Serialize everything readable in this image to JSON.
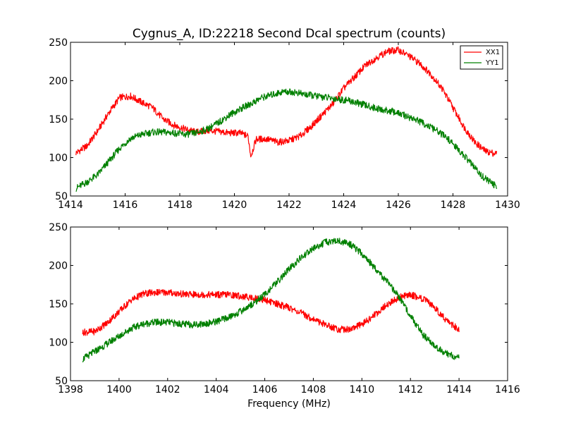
{
  "chart_data": [
    {
      "type": "line",
      "title": "Cygnus_A, ID:22218 Second Dcal spectrum (counts)",
      "xlabel": "",
      "ylabel": "",
      "xlim": [
        1414,
        1430
      ],
      "ylim": [
        50,
        250
      ],
      "xticks": [
        "1414",
        "1416",
        "1418",
        "1420",
        "1422",
        "1424",
        "1426",
        "1428",
        "1430"
      ],
      "yticks": [
        "50",
        "100",
        "150",
        "200",
        "250"
      ],
      "legend": "top-right",
      "grid": false,
      "series": [
        {
          "name": "XX1",
          "color": "#ff0000",
          "x": [
            1414.2,
            1414.6,
            1415.0,
            1415.4,
            1415.8,
            1416.2,
            1416.6,
            1417.0,
            1417.4,
            1417.8,
            1418.2,
            1418.6,
            1419.0,
            1419.4,
            1419.8,
            1420.2,
            1420.5,
            1420.6,
            1420.8,
            1421.2,
            1421.6,
            1422.0,
            1422.4,
            1422.8,
            1423.2,
            1423.6,
            1424.0,
            1424.4,
            1424.8,
            1425.2,
            1425.6,
            1426.0,
            1426.4,
            1426.8,
            1427.2,
            1427.6,
            1428.0,
            1428.4,
            1428.8,
            1429.2,
            1429.6
          ],
          "y": [
            106,
            115,
            135,
            158,
            178,
            180,
            172,
            165,
            150,
            142,
            137,
            133,
            135,
            134,
            132,
            132,
            128,
            102,
            124,
            124,
            120,
            122,
            128,
            140,
            155,
            170,
            190,
            205,
            220,
            230,
            238,
            240,
            232,
            222,
            208,
            190,
            165,
            140,
            120,
            108,
            105
          ]
        },
        {
          "name": "YY1",
          "color": "#008000",
          "x": [
            1414.2,
            1414.6,
            1415.0,
            1415.4,
            1415.8,
            1416.2,
            1416.6,
            1417.0,
            1417.4,
            1417.8,
            1418.2,
            1418.6,
            1419.0,
            1419.4,
            1419.8,
            1420.2,
            1420.6,
            1421.0,
            1421.4,
            1421.8,
            1422.2,
            1422.6,
            1423.0,
            1423.4,
            1423.8,
            1424.2,
            1424.6,
            1425.0,
            1425.4,
            1425.8,
            1426.2,
            1426.6,
            1427.0,
            1427.4,
            1427.8,
            1428.2,
            1428.6,
            1429.0,
            1429.4,
            1429.6
          ],
          "y": [
            60,
            68,
            78,
            95,
            112,
            125,
            130,
            133,
            133,
            132,
            130,
            132,
            137,
            145,
            155,
            163,
            170,
            178,
            182,
            186,
            185,
            182,
            180,
            178,
            176,
            174,
            170,
            166,
            162,
            160,
            155,
            150,
            143,
            135,
            125,
            110,
            95,
            78,
            67,
            62
          ]
        }
      ]
    },
    {
      "type": "line",
      "title": "",
      "xlabel": "Frequency (MHz)",
      "ylabel": "",
      "xlim": [
        1398,
        1416
      ],
      "ylim": [
        50,
        250
      ],
      "xticks": [
        "1398",
        "1400",
        "1402",
        "1404",
        "1406",
        "1408",
        "1410",
        "1412",
        "1414",
        "1416"
      ],
      "yticks": [
        "50",
        "100",
        "150",
        "200",
        "250"
      ],
      "grid": false,
      "series": [
        {
          "color": "#ff0000",
          "x": [
            1398.5,
            1399.0,
            1399.5,
            1400.0,
            1400.5,
            1401.0,
            1401.5,
            1402.0,
            1402.5,
            1403.0,
            1403.5,
            1404.0,
            1404.5,
            1405.0,
            1405.5,
            1406.0,
            1406.5,
            1407.0,
            1407.5,
            1408.0,
            1408.5,
            1409.0,
            1409.5,
            1410.0,
            1410.5,
            1411.0,
            1411.5,
            1412.0,
            1412.5,
            1413.0,
            1413.5,
            1414.0
          ],
          "y": [
            113,
            114,
            125,
            140,
            155,
            163,
            165,
            165,
            163,
            162,
            162,
            162,
            162,
            160,
            158,
            155,
            150,
            145,
            138,
            130,
            123,
            117,
            117,
            123,
            135,
            148,
            158,
            162,
            157,
            145,
            128,
            116
          ]
        },
        {
          "color": "#008000",
          "x": [
            1398.5,
            1399.0,
            1399.5,
            1400.0,
            1400.5,
            1401.0,
            1401.5,
            1402.0,
            1402.5,
            1403.0,
            1403.5,
            1404.0,
            1404.5,
            1405.0,
            1405.5,
            1406.0,
            1406.5,
            1407.0,
            1407.5,
            1408.0,
            1408.5,
            1409.0,
            1409.5,
            1410.0,
            1410.5,
            1411.0,
            1411.5,
            1412.0,
            1412.5,
            1413.0,
            1413.5,
            1414.0
          ],
          "y": [
            78,
            88,
            98,
            108,
            118,
            124,
            126,
            126,
            124,
            123,
            124,
            127,
            132,
            140,
            150,
            162,
            178,
            195,
            210,
            222,
            230,
            232,
            228,
            215,
            198,
            180,
            160,
            135,
            110,
            95,
            85,
            80
          ]
        }
      ]
    }
  ]
}
